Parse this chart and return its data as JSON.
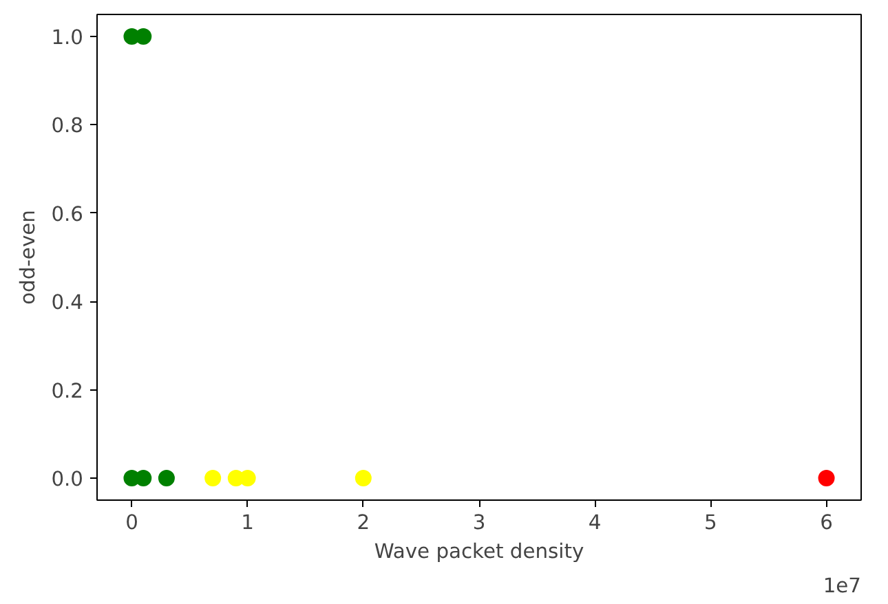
{
  "chart_data": {
    "type": "scatter",
    "xlabel": "Wave packet density",
    "ylabel": "odd-even",
    "series": [
      {
        "color": "#008000",
        "x": [
          0,
          0.1,
          0,
          0.1,
          0.3
        ],
        "values": [
          1,
          1,
          0,
          0,
          0
        ]
      },
      {
        "color": "#ffff00",
        "x": [
          0.7,
          0.9,
          1.0,
          2.0
        ],
        "values": [
          0,
          0,
          0,
          0
        ]
      },
      {
        "color": "#ff0000",
        "x": [
          6.0
        ],
        "values": [
          0
        ]
      }
    ],
    "xlim": [
      -0.3,
      6.3
    ],
    "xticks": [
      0,
      1,
      2,
      3,
      4,
      5,
      6
    ],
    "ylim": [
      -0.05,
      1.05
    ],
    "yticks": [
      {
        "value": 0,
        "label": "0.0"
      },
      {
        "value": 0.2,
        "label": "0.2"
      },
      {
        "value": 0.4,
        "label": "0.4"
      },
      {
        "value": 0.6,
        "label": "0.6"
      },
      {
        "value": 0.8,
        "label": "0.8"
      },
      {
        "value": 1,
        "label": "1.0"
      }
    ],
    "annotations": [
      "1e7"
    ],
    "marker": "circle",
    "grid": false
  }
}
